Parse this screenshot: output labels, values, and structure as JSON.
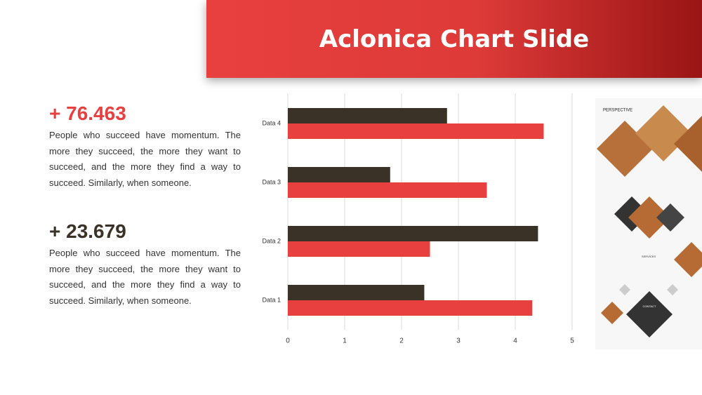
{
  "slide": {
    "title": "Aclonica Chart Slide",
    "stats": [
      {
        "value": "+ 76.463",
        "text": "People who succeed have momentum. The more they succeed, the more they want to succeed, and the more they find a way to succeed. Similarly, when someone."
      },
      {
        "value": "+ 23.679",
        "text": "People who succeed have momentum. The more they succeed, the more they want to succeed, and the more they find a way to succeed. Similarly, when someone."
      }
    ],
    "thumbnail": {
      "brand": "PERSPECTIVE",
      "section": "SERVICES",
      "contact": "CONTACT"
    }
  },
  "chart_data": {
    "type": "bar",
    "orientation": "horizontal",
    "categories": [
      "Data 1",
      "Data 2",
      "Data 3",
      "Data 4"
    ],
    "series": [
      {
        "color": "#e8403e",
        "values": [
          4.3,
          2.5,
          3.5,
          4.5
        ]
      },
      {
        "color": "#3a3226",
        "values": [
          2.4,
          4.4,
          1.8,
          2.8
        ]
      }
    ],
    "xlim": [
      0,
      5
    ],
    "xticks": [
      0,
      1,
      2,
      3,
      4,
      5
    ],
    "grid": true
  }
}
